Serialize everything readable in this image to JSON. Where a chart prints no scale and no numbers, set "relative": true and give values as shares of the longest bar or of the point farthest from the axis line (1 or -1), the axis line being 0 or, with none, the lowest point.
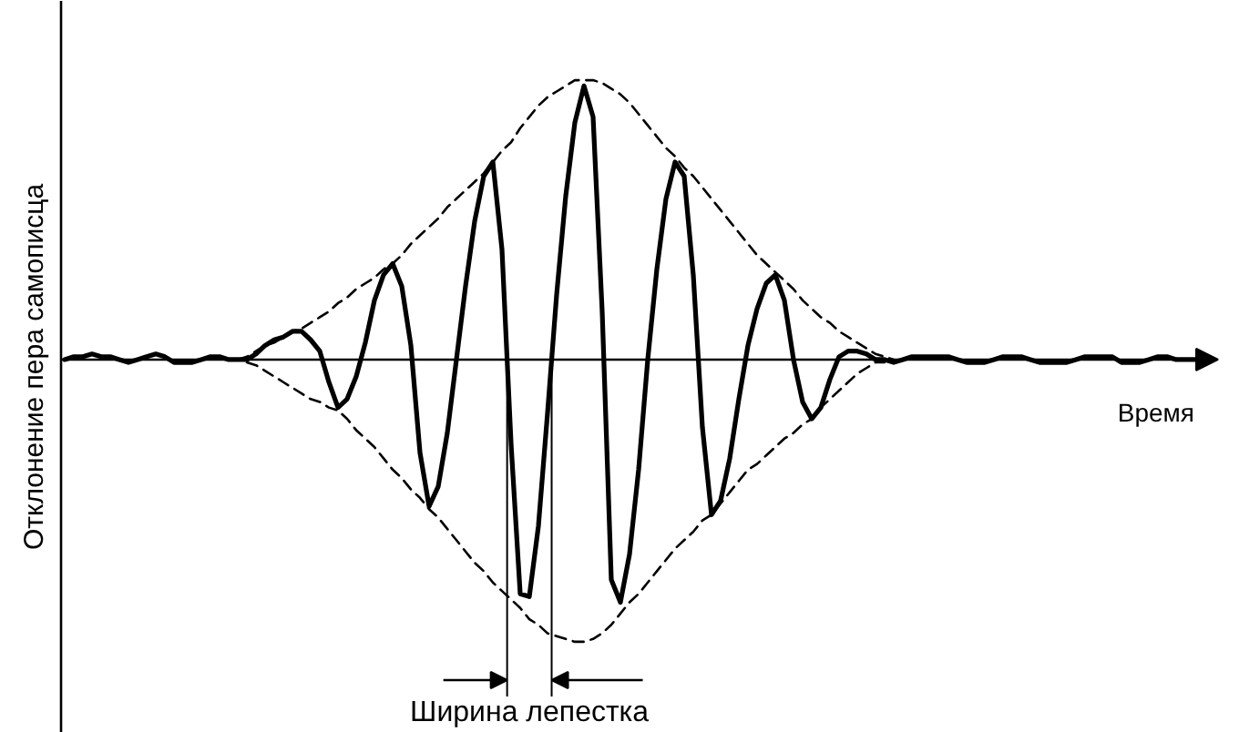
{
  "chart_data": {
    "type": "line",
    "relative": true,
    "xlabel": "Время",
    "ylabel": "Отклонение пера самописца",
    "annotations": [
      "Ширина лепестка"
    ],
    "categories": [
      null,
      null,
      null,
      null,
      null,
      null,
      null,
      null,
      null,
      null,
      null,
      null,
      null,
      null,
      null,
      null,
      null,
      null,
      null,
      null,
      null,
      null,
      null,
      null,
      null,
      null,
      null,
      null,
      null,
      null,
      null,
      null,
      null,
      null,
      null,
      null,
      null,
      null,
      null,
      null,
      null,
      null,
      null,
      null,
      null,
      null,
      null,
      null,
      null,
      null,
      null,
      null,
      null,
      null,
      null,
      null,
      null,
      null,
      null,
      null,
      null,
      null,
      null,
      null,
      null,
      null,
      null,
      null,
      null,
      null,
      null,
      null,
      null,
      null,
      null,
      null,
      null,
      null,
      null,
      null,
      null,
      null,
      null,
      null,
      null,
      null,
      null,
      null,
      null,
      null,
      null,
      null,
      null,
      null,
      null,
      null,
      null,
      null,
      null,
      null,
      null,
      null,
      null,
      null,
      null,
      null,
      null,
      null,
      null,
      null,
      null,
      null,
      null,
      null,
      null,
      null,
      null,
      null,
      null,
      null,
      null,
      null,
      null,
      null,
      null,
      null
    ],
    "series": [
      {
        "color": "#000000",
        "line_style": "solid",
        "values": [
          0,
          0.01,
          0.01,
          0.02,
          0.01,
          0.01,
          0,
          -0.01,
          0,
          0.01,
          0.02,
          0.01,
          -0.01,
          -0.01,
          -0.01,
          0,
          0.01,
          0.01,
          0,
          0,
          0,
          0.02,
          0.05,
          0.07,
          0.08,
          0.1,
          0.1,
          0.07,
          0.03,
          -0.08,
          -0.17,
          -0.14,
          -0.06,
          0.06,
          0.21,
          0.3,
          0.34,
          0.26,
          0.05,
          -0.33,
          -0.52,
          -0.45,
          -0.26,
          0,
          0.26,
          0.49,
          0.65,
          0.7,
          0.39,
          -0.3,
          -0.83,
          -0.84,
          -0.59,
          -0.19,
          0.23,
          0.58,
          0.84,
          0.97,
          0.86,
          0.17,
          -0.78,
          -0.86,
          -0.69,
          -0.39,
          0,
          0.32,
          0.57,
          0.7,
          0.65,
          0.3,
          -0.24,
          -0.55,
          -0.5,
          -0.35,
          -0.14,
          0.05,
          0.18,
          0.27,
          0.3,
          0.21,
          0,
          -0.15,
          -0.21,
          -0.17,
          -0.07,
          0.01,
          0.03,
          0.03,
          0.02,
          0,
          0,
          -0.01,
          0,
          0.01,
          0.01,
          0.01,
          0.01,
          0.01,
          0,
          -0.01,
          -0.01,
          -0.01,
          0,
          0.01,
          0.01,
          0.01,
          0,
          -0.01,
          -0.01,
          -0.01,
          -0.01,
          0,
          0.01,
          0.01,
          0.01,
          0.01,
          -0.01,
          -0.01,
          -0.01,
          0,
          0.01,
          0.01,
          0,
          0,
          0,
          0
        ]
      },
      {
        "color": "#000000",
        "line_style": "dashed",
        "values": [
          null,
          null,
          null,
          null,
          null,
          null,
          null,
          null,
          null,
          null,
          null,
          null,
          null,
          null,
          null,
          null,
          null,
          null,
          null,
          0,
          0.01,
          0.03,
          0.05,
          0.06,
          0.08,
          0.1,
          0.11,
          0.13,
          0.15,
          0.17,
          0.2,
          0.22,
          0.25,
          0.27,
          0.29,
          0.32,
          0.34,
          0.37,
          0.41,
          0.44,
          0.47,
          0.5,
          0.54,
          0.57,
          0.6,
          0.63,
          0.66,
          0.7,
          0.74,
          0.77,
          0.82,
          0.86,
          0.9,
          0.93,
          0.95,
          0.97,
          0.99,
          0.99,
          0.99,
          0.98,
          0.96,
          0.94,
          0.91,
          0.87,
          0.83,
          0.79,
          0.75,
          0.72,
          0.68,
          0.65,
          0.61,
          0.57,
          0.53,
          0.49,
          0.45,
          0.41,
          0.37,
          0.34,
          0.31,
          0.28,
          0.25,
          0.21,
          0.18,
          0.15,
          0.13,
          0.1,
          0.08,
          0.06,
          0.04,
          0.02,
          0.01,
          0,
          null,
          null,
          null,
          null,
          null,
          null,
          null,
          null,
          null,
          null,
          null,
          null,
          null,
          null,
          null,
          null,
          null,
          null,
          null,
          null,
          null,
          null,
          null,
          null,
          null,
          null,
          null,
          null,
          null,
          null,
          null,
          null,
          null,
          null
        ]
      },
      {
        "color": "#000000",
        "line_style": "dashed",
        "values": [
          null,
          null,
          null,
          null,
          null,
          null,
          null,
          null,
          null,
          null,
          null,
          null,
          null,
          null,
          null,
          null,
          null,
          null,
          null,
          null,
          -0.01,
          -0.02,
          -0.04,
          -0.06,
          -0.08,
          -0.1,
          -0.12,
          -0.14,
          -0.15,
          -0.17,
          -0.18,
          -0.21,
          -0.25,
          -0.28,
          -0.31,
          -0.35,
          -0.39,
          -0.42,
          -0.46,
          -0.49,
          -0.53,
          -0.56,
          -0.6,
          -0.64,
          -0.68,
          -0.72,
          -0.75,
          -0.79,
          -0.82,
          -0.85,
          -0.88,
          -0.92,
          -0.94,
          -0.97,
          -0.98,
          -0.99,
          -1,
          -1,
          -0.99,
          -0.97,
          -0.94,
          -0.9,
          -0.86,
          -0.83,
          -0.79,
          -0.75,
          -0.71,
          -0.67,
          -0.64,
          -0.61,
          -0.57,
          -0.55,
          -0.51,
          -0.47,
          -0.43,
          -0.39,
          -0.37,
          -0.34,
          -0.31,
          -0.28,
          -0.26,
          -0.23,
          -0.21,
          -0.17,
          -0.14,
          -0.11,
          -0.08,
          -0.05,
          -0.03,
          -0.01,
          -0.01,
          null,
          null,
          null,
          null,
          null,
          null,
          null,
          null,
          null,
          null,
          null,
          null,
          null,
          null,
          null,
          null,
          null,
          null,
          null,
          null,
          null,
          null,
          null,
          null,
          null,
          null,
          null,
          null,
          null,
          null,
          null,
          null,
          null,
          null,
          null
        ]
      }
    ]
  }
}
